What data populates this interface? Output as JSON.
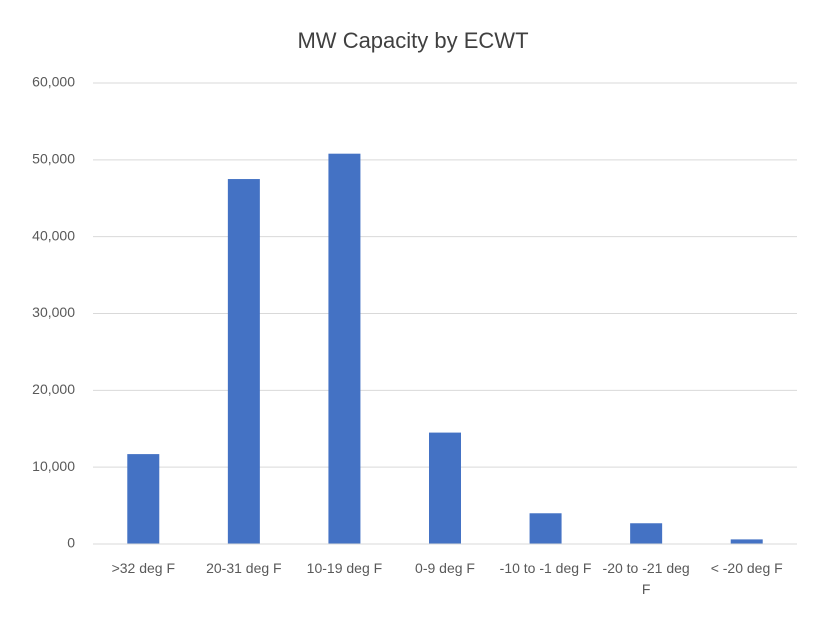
{
  "chart_data": {
    "type": "bar",
    "title": "MW Capacity by ECWT",
    "categories": [
      ">32 deg F",
      "20-31 deg F",
      "10-19 deg F",
      "0-9 deg F",
      "-10 to -1 deg F",
      "-20 to -21 deg F",
      "< -20 deg F"
    ],
    "values": [
      11700,
      47500,
      50800,
      14500,
      4000,
      2700,
      600
    ],
    "color": "#4472c4",
    "ylim": [
      0,
      60000
    ],
    "yticks": [
      0,
      {
        "value": 10000,
        "label": "10,000"
      },
      {
        "value": 20000,
        "label": "20,000"
      },
      {
        "value": 30000,
        "label": "30,000"
      },
      {
        "value": 40000,
        "label": "40,000"
      },
      {
        "value": 50000,
        "label": "50,000"
      },
      {
        "value": 60000,
        "label": "60,000"
      }
    ],
    "grid": true
  }
}
